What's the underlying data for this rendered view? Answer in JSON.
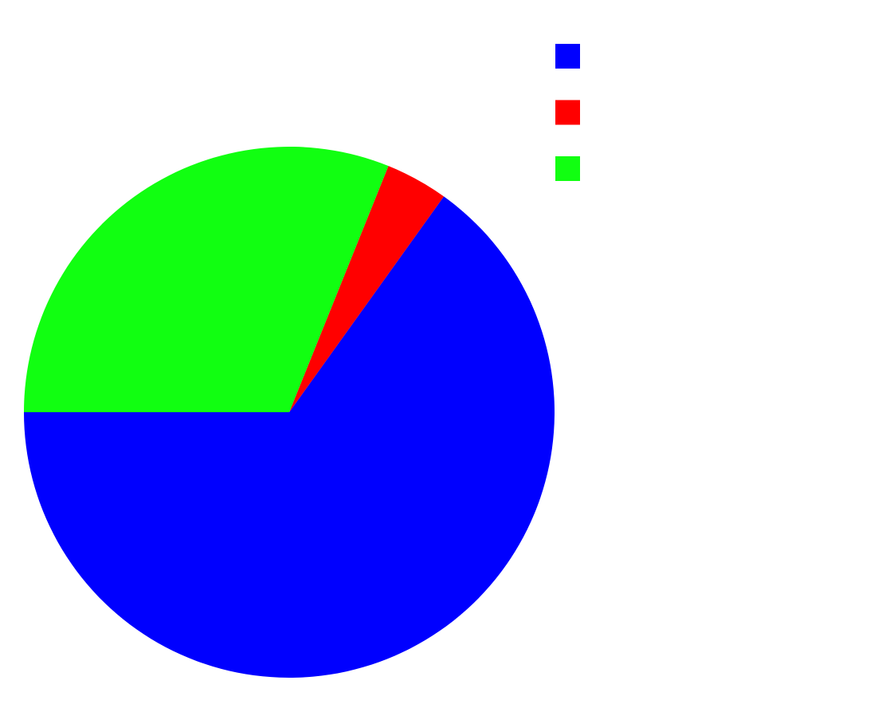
{
  "chart_data": {
    "type": "pie",
    "title": "",
    "start_angle_deg": 180,
    "direction": "counterclockwise",
    "legend_position": "top-right",
    "slices": [
      {
        "label": "",
        "value": 65.1,
        "color": "#0000ff"
      },
      {
        "label": "",
        "value": 3.8,
        "color": "#ff0000"
      },
      {
        "label": "",
        "value": 31.1,
        "color": "#11ff11"
      }
    ]
  }
}
